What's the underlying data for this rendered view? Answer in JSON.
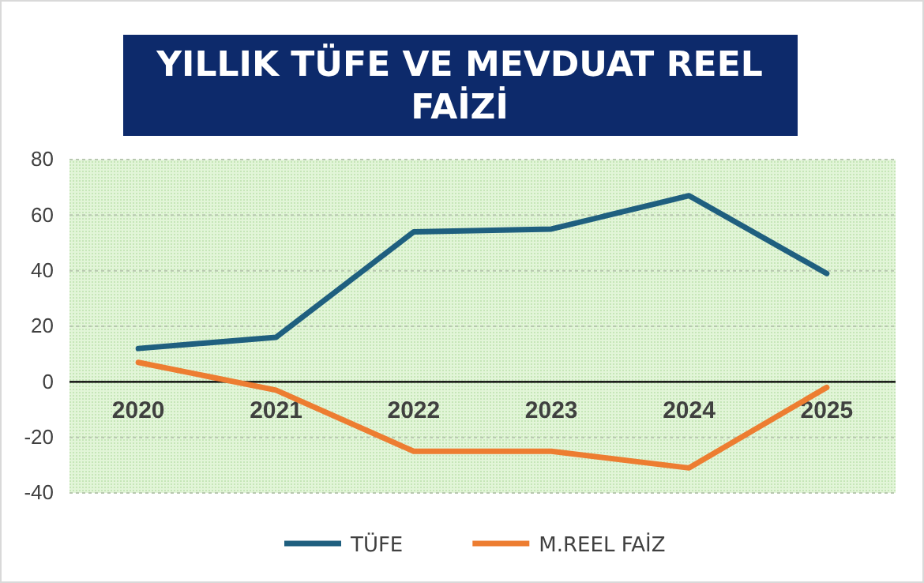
{
  "chart_data": {
    "type": "line",
    "title": "YILLIK TÜFE VE  MEVDUAT  REEL FAİZİ",
    "categories": [
      "2020",
      "2021",
      "2022",
      "2023",
      "2024",
      "2025"
    ],
    "series": [
      {
        "name": "TÜFE",
        "color": "#1f5f7f",
        "values": [
          12,
          16,
          54,
          55,
          67,
          39
        ]
      },
      {
        "name": "M.REEL FAİZ",
        "color": "#ed7d31",
        "values": [
          7,
          -3,
          -25,
          -25,
          -31,
          -2
        ]
      }
    ],
    "ylim": [
      -40,
      80
    ],
    "yticks": [
      -40,
      -20,
      0,
      20,
      40,
      60,
      80
    ],
    "grid": "y",
    "legend": "bottom",
    "marker": "none",
    "line_style": "solid"
  }
}
